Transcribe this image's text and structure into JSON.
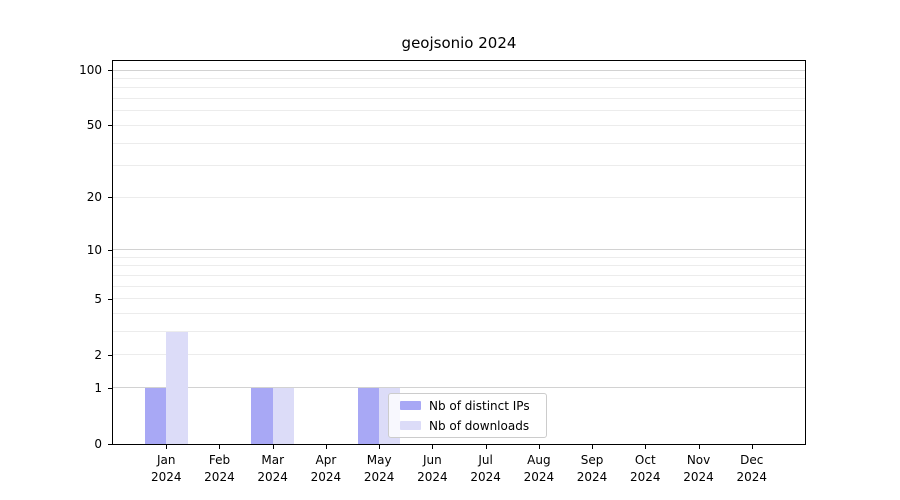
{
  "chart_data": {
    "type": "bar",
    "title": "geojsonio 2024",
    "categories": [
      "Jan 2024",
      "Feb 2024",
      "Mar 2024",
      "Apr 2024",
      "May 2024",
      "Jun 2024",
      "Jul 2024",
      "Aug 2024",
      "Sep 2024",
      "Oct 2024",
      "Nov 2024",
      "Dec 2024"
    ],
    "series": [
      {
        "name": "Nb of distinct IPs",
        "color": "#a8a8f5",
        "values": [
          1,
          0,
          1,
          0,
          1,
          0,
          0,
          0,
          0,
          0,
          0,
          0
        ]
      },
      {
        "name": "Nb of downloads",
        "color": "#dcdcf8",
        "values": [
          3,
          0,
          1,
          0,
          1,
          0,
          0,
          0,
          0,
          0,
          0,
          0
        ]
      }
    ],
    "xlabel": "",
    "ylabel": "",
    "yscale": "log1p",
    "ylim": [
      0,
      112
    ],
    "yticks": [
      0,
      1,
      2,
      5,
      10,
      20,
      50,
      100
    ],
    "grid_major": [
      1,
      10,
      100
    ],
    "grid_minor": [
      2,
      3,
      4,
      5,
      6,
      7,
      8,
      9,
      20,
      30,
      40,
      50,
      60,
      70,
      80,
      90
    ],
    "grid": "on",
    "legend_position": "inside-bottom-center"
  },
  "colors": {
    "background": "#ffffff",
    "spine": "#000000",
    "grid_major": "#d2d2d2",
    "grid_minor": "#ececec",
    "legend_border": "#cccccc"
  }
}
